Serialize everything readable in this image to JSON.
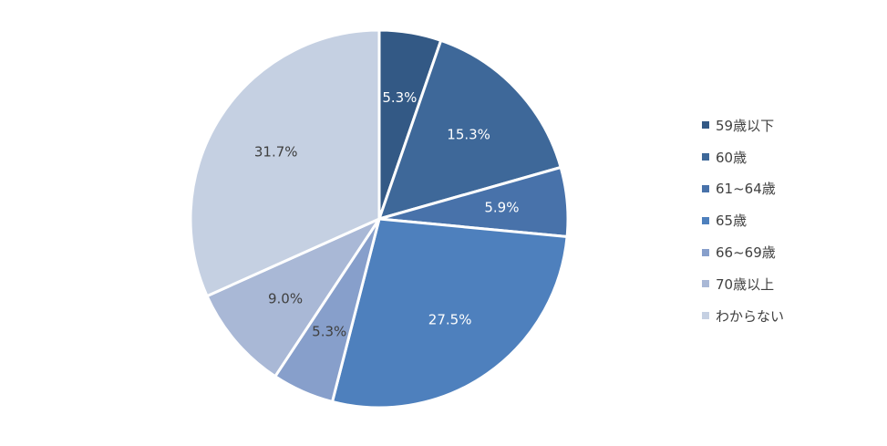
{
  "chart_data": {
    "type": "pie",
    "title": "",
    "categories": [
      "59歳以下",
      "60歳",
      "61~64歳",
      "65歳",
      "66~69歳",
      "70歳以上",
      "わからない"
    ],
    "values": [
      5.3,
      15.3,
      5.9,
      27.5,
      5.3,
      9.0,
      31.7
    ],
    "value_labels": [
      "5.3%",
      "15.3%",
      "5.9%",
      "27.5%",
      "5.3%",
      "9.0%",
      "31.7%"
    ],
    "colors": [
      "#335985",
      "#3e6899",
      "#4872aa",
      "#4e80bd",
      "#879fcb",
      "#a9b8d6",
      "#c5d0e2"
    ],
    "label_colors": [
      "#ffffff",
      "#ffffff",
      "#ffffff",
      "#ffffff",
      "#404040",
      "#404040",
      "#404040"
    ],
    "legend_position": "right",
    "start_angle": "12 o'clock",
    "direction": "clockwise"
  }
}
